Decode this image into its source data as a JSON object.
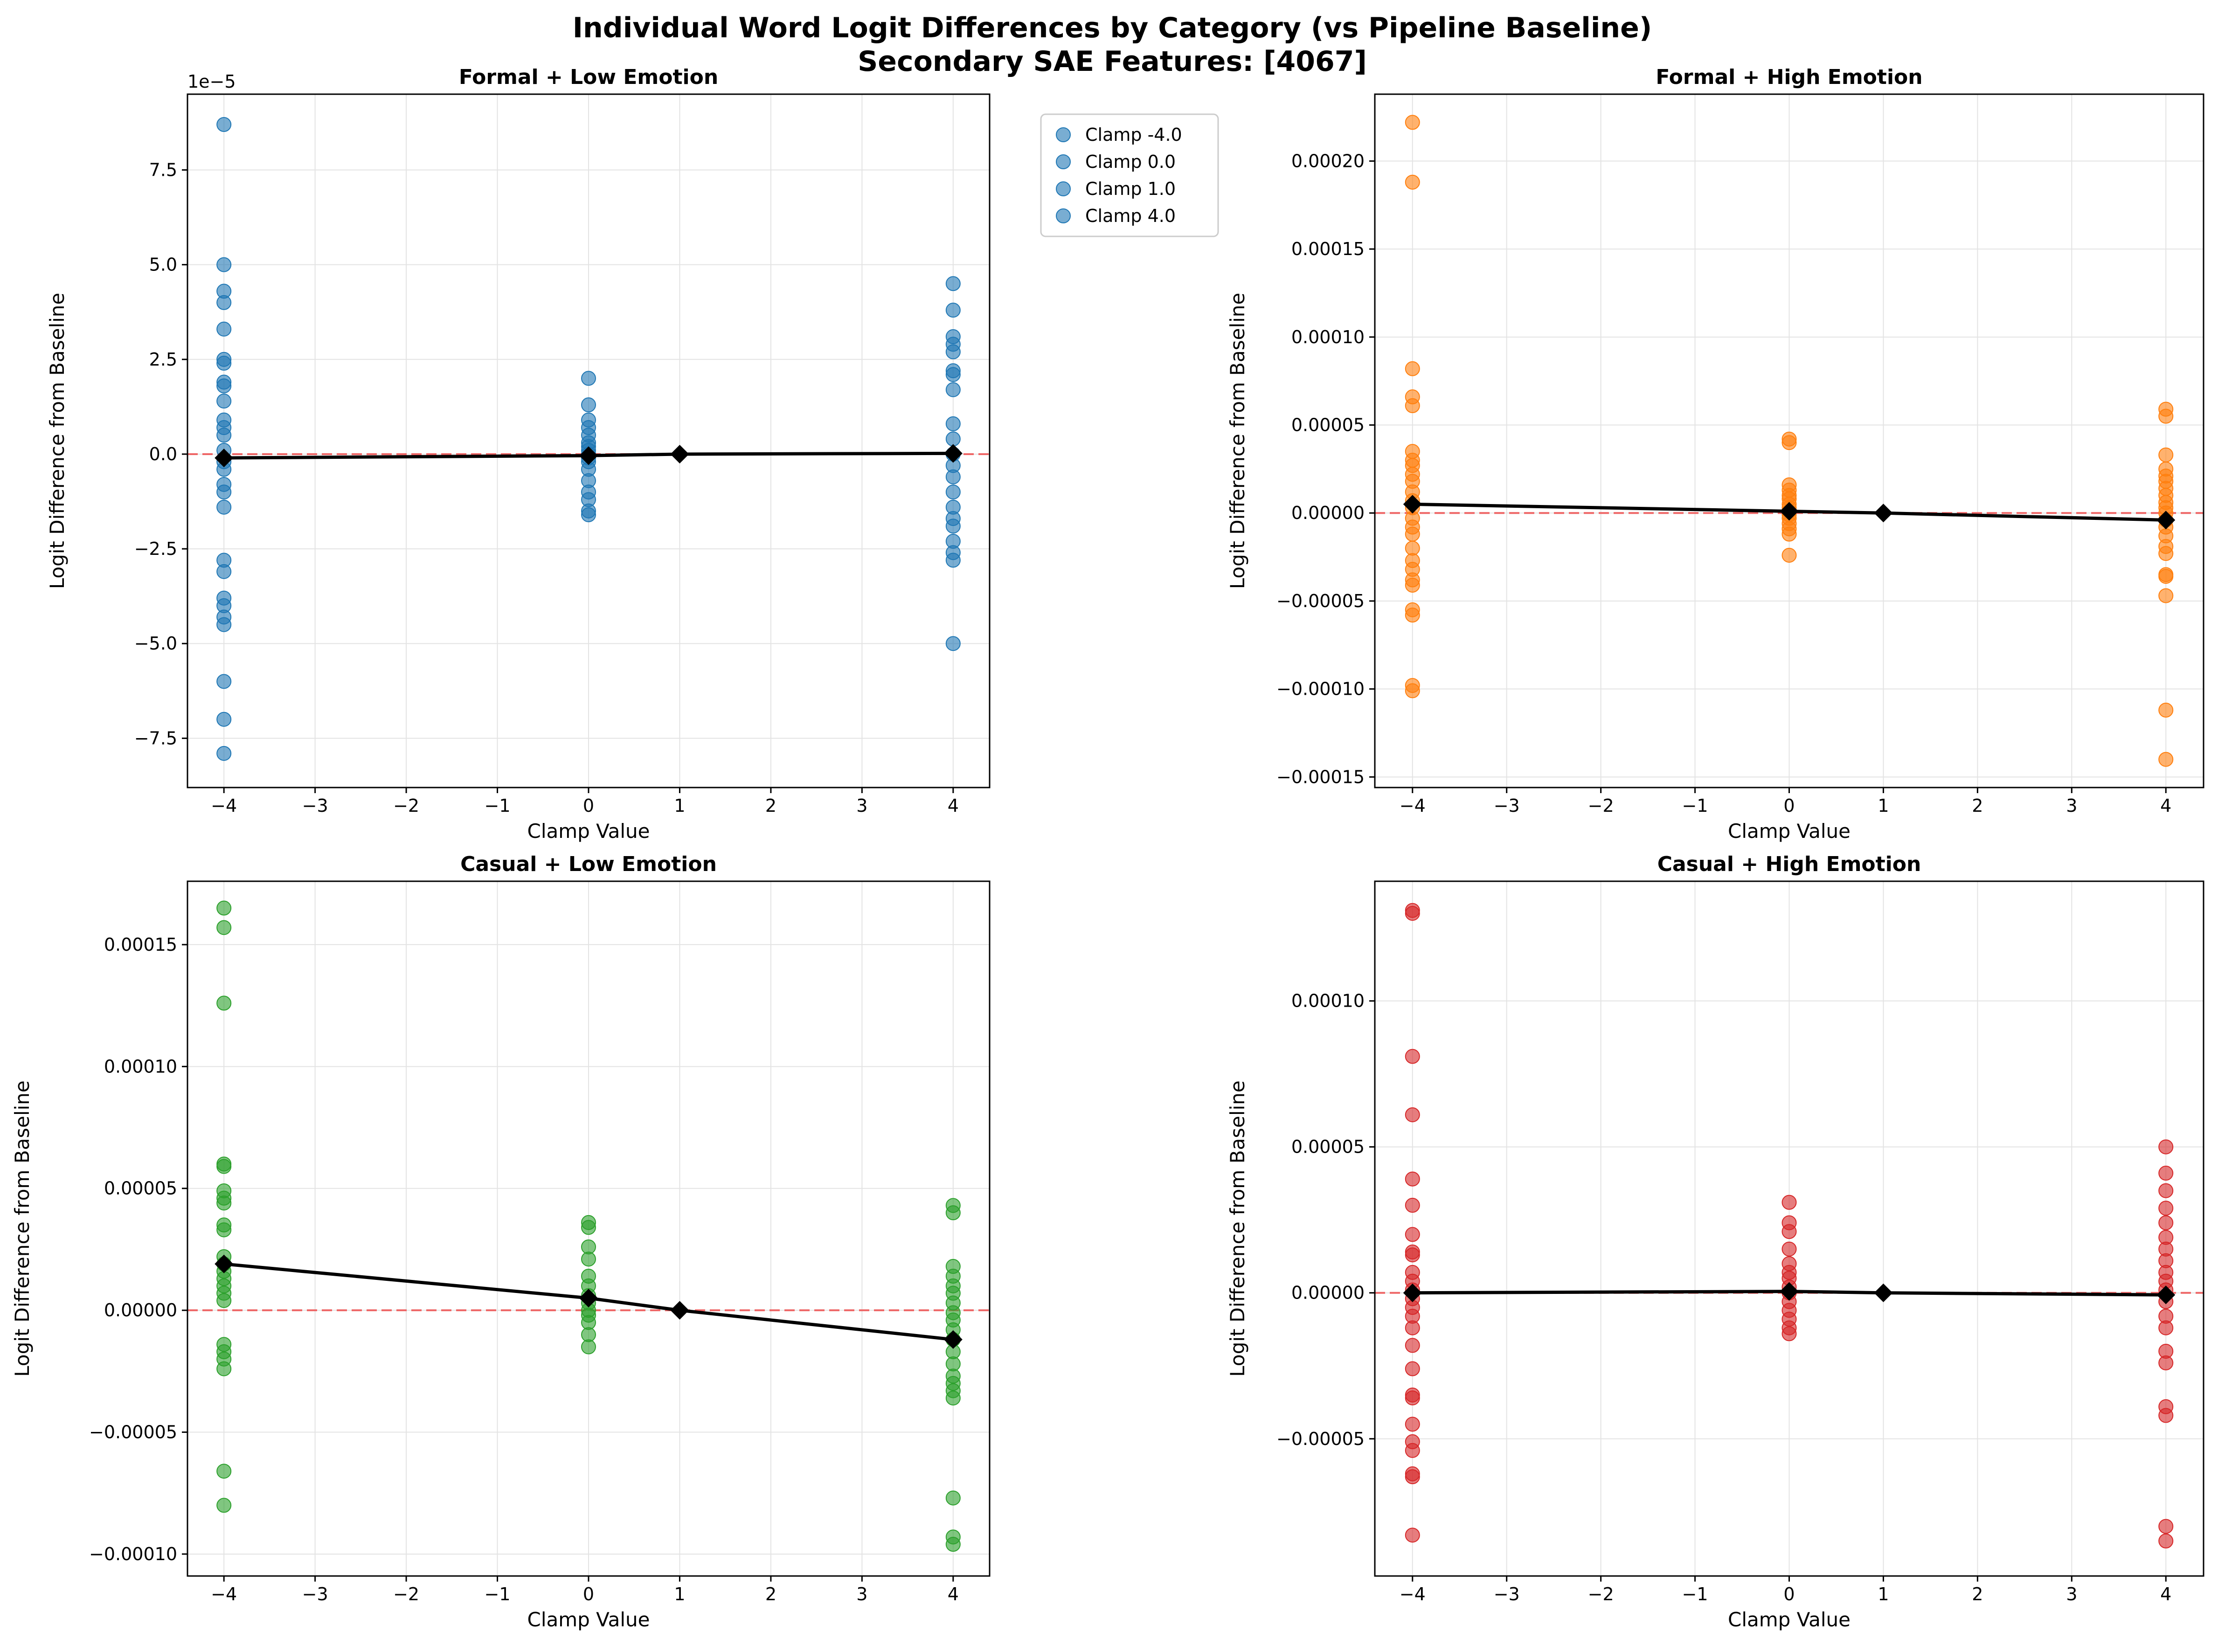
{
  "figure": {
    "title_line1": "Individual Word Logit Differences by Category (vs Pipeline Baseline)",
    "title_line2": "Secondary SAE Features: [4067]"
  },
  "chart_data": [
    {
      "type": "scatter",
      "title": "Formal + Low Emotion",
      "xlabel": "Clamp Value",
      "ylabel": "Logit Difference from Baseline",
      "color": "#1f77b4",
      "xlim": [
        -4.4,
        4.4
      ],
      "ylim": [
        -8.8e-05,
        9.5e-05
      ],
      "xticks": [
        -4,
        -3,
        -2,
        -1,
        0,
        1,
        2,
        3,
        4
      ],
      "yticks": [
        -7.5e-05,
        -5e-05,
        -2.5e-05,
        0,
        2.5e-05,
        5e-05,
        7.5e-05
      ],
      "ytick_labels": [
        "−7.5",
        "−5.0",
        "−2.5",
        "0.0",
        "2.5",
        "5.0",
        "7.5"
      ],
      "offset_text": "1e−5",
      "points": [
        {
          "x": -4,
          "y": [
            8.7e-05,
            5e-05,
            4.3e-05,
            4e-05,
            3.3e-05,
            2.5e-05,
            2.4e-05,
            1.9e-05,
            1.8e-05,
            1.4e-05,
            9e-06,
            7e-06,
            5e-06,
            1e-06,
            -2e-06,
            -4e-06,
            -8e-06,
            -1e-05,
            -1.4e-05,
            -2.8e-05,
            -3.1e-05,
            -3.8e-05,
            -4e-05,
            -4.3e-05,
            -4.5e-05,
            -6e-05,
            -7e-05,
            -7.9e-05
          ]
        },
        {
          "x": 0,
          "y": [
            2e-05,
            1.3e-05,
            9e-06,
            7e-06,
            5e-06,
            3e-06,
            2e-06,
            1e-06,
            0.0,
            -1e-06,
            -2e-06,
            -4e-06,
            -7e-06,
            -1e-05,
            -1.2e-05,
            -1.5e-05,
            -1.6e-05
          ]
        },
        {
          "x": 4,
          "y": [
            4.5e-05,
            3.8e-05,
            3.1e-05,
            2.9e-05,
            2.7e-05,
            2.2e-05,
            2.1e-05,
            1.7e-05,
            8e-06,
            4e-06,
            0.0,
            -3e-06,
            -6e-06,
            -1e-05,
            -1.4e-05,
            -1.7e-05,
            -1.9e-05,
            -2.3e-05,
            -2.6e-05,
            -2.8e-05,
            -5e-05
          ]
        }
      ],
      "mean_line": {
        "x": [
          -4,
          0,
          1,
          4
        ],
        "y": [
          -1e-06,
          -4e-07,
          0.0,
          2e-07
        ]
      },
      "legend": {
        "position": "outside-right",
        "entries": [
          "Clamp -4.0",
          "Clamp 0.0",
          "Clamp 1.0",
          "Clamp 4.0"
        ]
      }
    },
    {
      "type": "scatter",
      "title": "Formal + High Emotion",
      "xlabel": "Clamp Value",
      "ylabel": "Logit Difference from Baseline",
      "color": "#ff7f0e",
      "xlim": [
        -4.4,
        4.4
      ],
      "ylim": [
        -0.000156,
        0.000238
      ],
      "xticks": [
        -4,
        -3,
        -2,
        -1,
        0,
        1,
        2,
        3,
        4
      ],
      "yticks": [
        -0.00015,
        -0.0001,
        -5e-05,
        0,
        5e-05,
        0.0001,
        0.00015,
        0.0002
      ],
      "ytick_labels": [
        "−0.00015",
        "−0.00010",
        "−0.00005",
        "0.00000",
        "0.00005",
        "0.00010",
        "0.00015",
        "0.00020"
      ],
      "points": [
        {
          "x": -4,
          "y": [
            0.000222,
            0.000188,
            8.2e-05,
            6.6e-05,
            6.1e-05,
            3.5e-05,
            3e-05,
            2.7e-05,
            2.2e-05,
            1.8e-05,
            1.2e-05,
            7e-06,
            3e-06,
            -3e-06,
            -8e-06,
            -1.2e-05,
            -2e-05,
            -2.7e-05,
            -3.2e-05,
            -3.8e-05,
            -4.1e-05,
            -5.5e-05,
            -5.8e-05,
            -9.8e-05,
            -0.000101
          ]
        },
        {
          "x": 0,
          "y": [
            4.2e-05,
            4e-05,
            1.6e-05,
            1.3e-05,
            1e-05,
            8e-06,
            5e-06,
            3e-06,
            1e-06,
            -1e-06,
            -3e-06,
            -6e-06,
            -9e-06,
            -1.2e-05,
            -2.4e-05
          ]
        },
        {
          "x": 4,
          "y": [
            5.9e-05,
            5.5e-05,
            3.3e-05,
            2.5e-05,
            2.1e-05,
            1.8e-05,
            1.4e-05,
            1e-05,
            6e-06,
            3e-06,
            0.0,
            -4e-06,
            -8e-06,
            -1.3e-05,
            -1.9e-05,
            -2.3e-05,
            -3.5e-05,
            -3.6e-05,
            -4.7e-05,
            -0.000112,
            -0.00014
          ]
        }
      ],
      "mean_line": {
        "x": [
          -4,
          0,
          1,
          4
        ],
        "y": [
          5e-06,
          1e-06,
          0.0,
          -4e-06
        ]
      }
    },
    {
      "type": "scatter",
      "title": "Casual + Low Emotion",
      "xlabel": "Clamp Value",
      "ylabel": "Logit Difference from Baseline",
      "color": "#2ca02c",
      "xlim": [
        -4.4,
        4.4
      ],
      "ylim": [
        -0.000109,
        0.000176
      ],
      "xticks": [
        -4,
        -3,
        -2,
        -1,
        0,
        1,
        2,
        3,
        4
      ],
      "yticks": [
        -0.0001,
        -5e-05,
        0,
        5e-05,
        0.0001,
        0.00015
      ],
      "ytick_labels": [
        "−0.00010",
        "−0.00005",
        "0.00000",
        "0.00005",
        "0.00010",
        "0.00015"
      ],
      "points": [
        {
          "x": -4,
          "y": [
            0.000165,
            0.000157,
            0.000126,
            6e-05,
            5.9e-05,
            4.9e-05,
            4.6e-05,
            4.4e-05,
            3.5e-05,
            3.3e-05,
            2.2e-05,
            1.9e-05,
            1.6e-05,
            1.3e-05,
            1e-05,
            7e-06,
            4e-06,
            -1.4e-05,
            -1.7e-05,
            -2e-05,
            -2.4e-05,
            -6.6e-05,
            -8e-05
          ]
        },
        {
          "x": 0,
          "y": [
            3.6e-05,
            3.4e-05,
            2.6e-05,
            2.1e-05,
            1.4e-05,
            1e-05,
            6e-06,
            3e-06,
            0.0,
            -2e-06,
            -5e-06,
            -1e-05,
            -1.5e-05
          ]
        },
        {
          "x": 4,
          "y": [
            4.3e-05,
            4e-05,
            1.8e-05,
            1.4e-05,
            1e-05,
            7e-06,
            3e-06,
            -1e-06,
            -4e-06,
            -8e-06,
            -1.2e-05,
            -1.7e-05,
            -2.2e-05,
            -2.7e-05,
            -3e-05,
            -3.3e-05,
            -3.6e-05,
            -7.7e-05,
            -9.3e-05,
            -9.6e-05
          ]
        }
      ],
      "mean_line": {
        "x": [
          -4,
          0,
          1,
          4
        ],
        "y": [
          1.9e-05,
          5e-06,
          0.0,
          -1.2e-05
        ]
      }
    },
    {
      "type": "scatter",
      "title": "Casual + High Emotion",
      "xlabel": "Clamp Value",
      "ylabel": "Logit Difference from Baseline",
      "color": "#d62728",
      "xlim": [
        -4.4,
        4.4
      ],
      "ylim": [
        -9.7e-05,
        0.000141
      ],
      "xticks": [
        -4,
        -3,
        -2,
        -1,
        0,
        1,
        2,
        3,
        4
      ],
      "yticks": [
        -5e-05,
        0,
        5e-05,
        0.0001
      ],
      "ytick_labels": [
        "−0.00005",
        "0.00000",
        "0.00005",
        "0.00010"
      ],
      "points": [
        {
          "x": -4,
          "y": [
            0.000131,
            0.00013,
            8.1e-05,
            6.1e-05,
            3.9e-05,
            3e-05,
            2e-05,
            1.4e-05,
            1.3e-05,
            7e-06,
            4e-06,
            1e-06,
            -2e-06,
            -5e-06,
            -8e-06,
            -1.2e-05,
            -1.8e-05,
            -2.6e-05,
            -3.5e-05,
            -3.6e-05,
            -4.5e-05,
            -5.1e-05,
            -5.4e-05,
            -6.2e-05,
            -6.3e-05,
            -8.3e-05
          ]
        },
        {
          "x": 0,
          "y": [
            3.1e-05,
            2.4e-05,
            2.1e-05,
            1.5e-05,
            1e-05,
            7e-06,
            5e-06,
            2e-06,
            0.0,
            -3e-06,
            -6e-06,
            -9e-06,
            -1.2e-05,
            -1.4e-05
          ]
        },
        {
          "x": 4,
          "y": [
            5e-05,
            4.1e-05,
            3.5e-05,
            2.9e-05,
            2.4e-05,
            1.9e-05,
            1.5e-05,
            1.1e-05,
            7e-06,
            4e-06,
            1e-06,
            -3e-06,
            -8e-06,
            -1.2e-05,
            -2e-05,
            -2.4e-05,
            -3.9e-05,
            -4.2e-05,
            -8e-05,
            -8.5e-05
          ]
        }
      ],
      "mean_line": {
        "x": [
          -4,
          0,
          1,
          4
        ],
        "y": [
          0.0,
          5e-07,
          0.0,
          -7e-07
        ]
      }
    }
  ]
}
